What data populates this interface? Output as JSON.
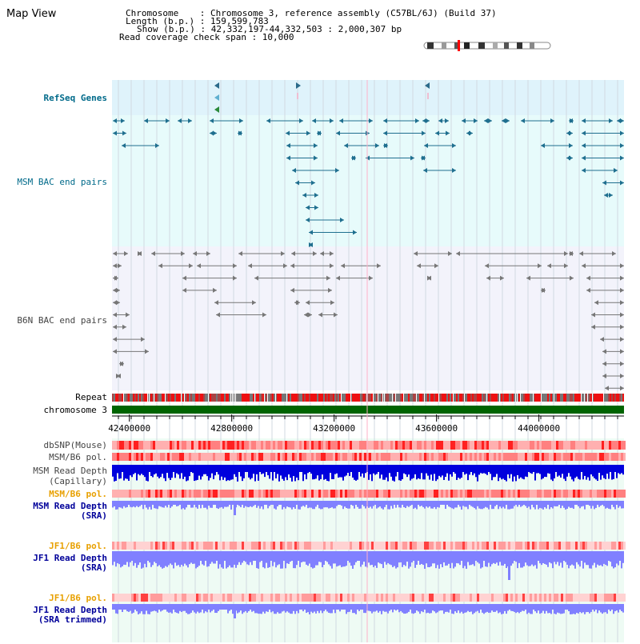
{
  "view_title": "Map View",
  "info": {
    "chromosome_line": "Chromosome    : Chromosome 3, reference assembly (C57BL/6J) (Build 37)",
    "length_line": "Length (b.p.) : 159,599,783",
    "show_line": "Show (b.p.) : 42,332,197-44,332,503 : 2,000,307 bp",
    "coverage_line": "Read coverage check span : 10,000"
  },
  "tracks": {
    "refseq": "RefSeq Genes",
    "msm_bac": "MSM BAC end pairs",
    "b6n_bac": "B6N BAC end pairs",
    "repeat": "Repeat",
    "chromosome": "chromosome 3",
    "dbsnp": "dbSNP(Mouse)",
    "msm_b6_pol_1": "MSM/B6 pol.",
    "msm_depth_cap_1": "MSM Read Depth",
    "msm_depth_cap_2": "(Capillary)",
    "msm_b6_pol_2": "MSM/B6 pol.",
    "msm_depth_sra_1": "MSM Read Depth",
    "msm_depth_sra_2": "(SRA)",
    "jf1_b6_pol_1": "JF1/B6 pol.",
    "jf1_depth_sra_1": "JF1 Read Depth",
    "jf1_depth_sra_2": "(SRA)",
    "jf1_b6_pol_2": "JF1/B6 pol.",
    "jf1_depth_trim_1": "JF1 Read Depth",
    "jf1_depth_trim_2": "(SRA trimmed)"
  },
  "axis": {
    "ticks": [
      "42400000",
      "42800000",
      "43200000",
      "43600000",
      "44000000"
    ],
    "tick_values": [
      42400000,
      42800000,
      43200000,
      43600000,
      44000000
    ],
    "range": [
      42332197,
      44332503
    ]
  },
  "colors": {
    "refseq_bg": "#dff3fb",
    "msm_bg": "#e7fbfb",
    "b6n_bg": "#f3f3fb",
    "lower_bg": "#eefbf4",
    "label_blue": "#00009a",
    "label_teal": "#006a8a",
    "label_gray": "#444444",
    "label_orange": "#e8a000",
    "chromosome_green": "#006400",
    "depth_dark_blue": "#0000dd",
    "depth_light_blue": "#8080ff"
  }
}
